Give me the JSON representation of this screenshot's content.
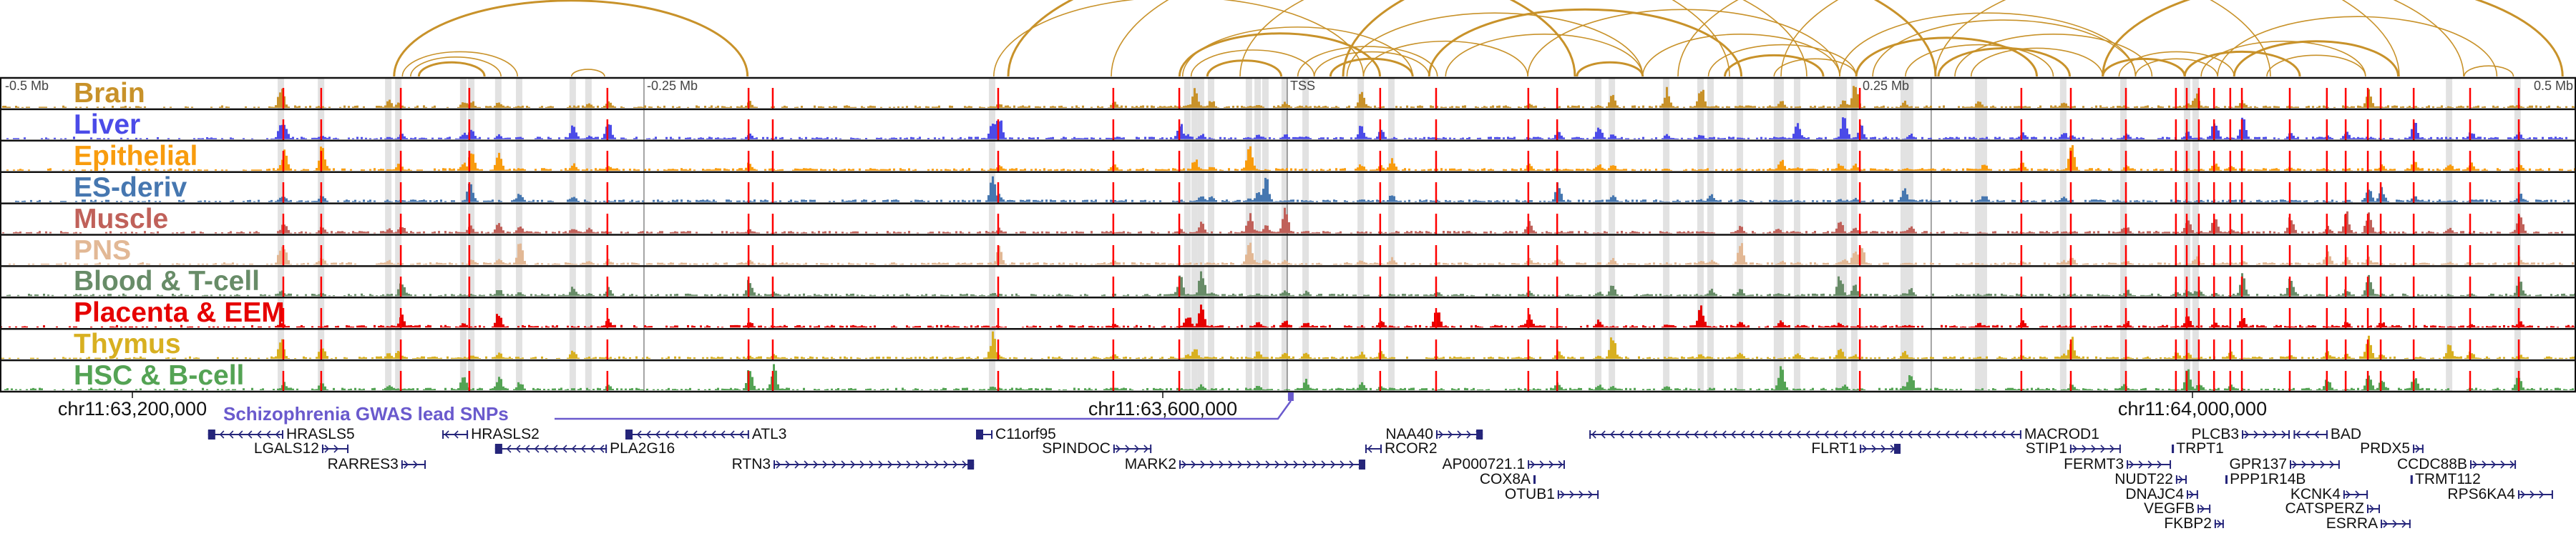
{
  "tracks": [
    {
      "label": "Brain",
      "color": "#c8922a"
    },
    {
      "label": "Liver",
      "color": "#4b4be8"
    },
    {
      "label": "Epithelial",
      "color": "#f89c0e"
    },
    {
      "label": "ES-deriv",
      "color": "#4677b0"
    },
    {
      "label": "Muscle",
      "color": "#c0615a"
    },
    {
      "label": "PNS",
      "color": "#e2b895"
    },
    {
      "label": "Blood & T-cell",
      "color": "#688c68"
    },
    {
      "label": "Placenta & EEM",
      "color": "#e60000"
    },
    {
      "label": "Thymus",
      "color": "#d8b021"
    },
    {
      "label": "HSC & B-cell",
      "color": "#54a354"
    }
  ],
  "scale_labels": {
    "minus_half": "-0.5 Mb",
    "minus_quarter": "-0.25 Mb",
    "tss": "TSS",
    "plus_quarter": "0.25 Mb",
    "plus_half": "0.5 Mb"
  },
  "coordinates": {
    "c1": "chr11:63,200,000",
    "c2": "chr11:63,600,000",
    "c3": "chr11:64,000,000"
  },
  "snp_track": {
    "label": "Schizophrenia GWAS lead SNPs",
    "color": "#6a5acd",
    "lead_snp_kb": 449.7
  },
  "colors": {
    "loop": "#c8922a",
    "snp_line": "#ff0000",
    "highlight": "#e2e2e2",
    "gene": "#25257a"
  },
  "position_units": "kb from chr11:63,200,000",
  "loops": [
    [
      101.6,
      238.8
    ],
    [
      104.8,
      149.5
    ],
    [
      108,
      143.1
    ],
    [
      111.2,
      136.7
    ],
    [
      170.5,
      183.3
    ],
    [
      334.4,
      477.9
    ],
    [
      406.5,
      484.3
    ],
    [
      407.7,
      497
    ],
    [
      411,
      458.8
    ],
    [
      417.3,
      446
    ],
    [
      452.4,
      506.6
    ],
    [
      458.8,
      503.4
    ],
    [
      465.1,
      497
    ],
    [
      471.5,
      586.3
    ],
    [
      477.9,
      541.7
    ],
    [
      503.4,
      624.6
    ],
    [
      509.8,
      586.3
    ],
    [
      541.7,
      662.8
    ],
    [
      560.8,
      586.3
    ],
    [
      586.3,
      662.8
    ],
    [
      611.8,
      669.2
    ],
    [
      618.2,
      656.4
    ],
    [
      637.3,
      669.2
    ],
    [
      662.8,
      777.6
    ],
    [
      669.2,
      739.3
    ],
    [
      675.6,
      777.6
    ],
    [
      688.3,
      745.7
    ],
    [
      701.1,
      752.1
    ],
    [
      713.8,
      764.9
    ],
    [
      707.5,
      784
    ],
    [
      764.9,
      796.7
    ],
    [
      771.2,
      815.9
    ],
    [
      777.6,
      809.5
    ],
    [
      796.7,
      841.4
    ],
    [
      803.1,
      866.9
    ],
    [
      809.5,
      917.9
    ],
    [
      815.9,
      879.6
    ],
    [
      828.6,
      866.9
    ],
    [
      905.2,
      924.3
    ],
    [
      764.9,
      943.4
    ],
    [
      380,
      620
    ],
    [
      430,
      650
    ],
    [
      470,
      700
    ],
    [
      600,
      830
    ],
    [
      640,
      880
    ],
    [
      340,
      560
    ],
    [
      700,
      905
    ]
  ],
  "snps_kb": [
    58.6,
    73.3,
    104.2,
    130.8,
    184.4,
    239.2,
    248.6,
    336.1,
    380.8,
    406.4,
    484.4,
    506.1,
    541.9,
    553.1,
    670.6,
    733.3,
    752.5,
    773.9,
    793.3,
    797.5,
    802.2,
    808.1,
    814.4,
    818.9,
    837.5,
    851.9,
    859.2,
    867.8,
    872.8,
    885.6,
    907.5,
    926.4
  ],
  "scale_lines_kb": [
    198.6,
    448.3,
    698.3
  ],
  "highlights_kb": [
    57.5,
    73.1,
    99.2,
    103.1,
    128.3,
    131.4,
    141.9,
    150,
    170.8,
    176.9,
    333.6,
    409.4,
    412.2,
    414.7,
    418.6,
    433.3,
    436.7,
    439.7,
    447.2,
    455.3,
    476.7,
    488.6,
    568.9,
    574.2,
    595.3,
    608.6,
    612.5,
    623.9,
    638.3,
    639.7,
    646.1,
    662.5,
    664.2,
    668.3,
    687.5,
    690,
    716.4,
    718.6,
    749.4,
    772.8,
    797.5,
    800.8,
    899.2,
    925.8
  ],
  "genes": [
    {
      "name": "HRASLS5",
      "start": 29.4,
      "end": 58.6,
      "strand": "-",
      "row": 0,
      "label_side": "right",
      "block": "start"
    },
    {
      "name": "HRASLS2",
      "start": 120.3,
      "end": 130.3,
      "strand": "-",
      "row": 0,
      "label_side": "right"
    },
    {
      "name": "ATL3",
      "start": 191.4,
      "end": 239.4,
      "strand": "-",
      "row": 0,
      "label_side": "right",
      "block": "start"
    },
    {
      "name": "LGALS12",
      "start": 73.6,
      "end": 83.9,
      "strand": "+",
      "row": 1,
      "label_side": "left"
    },
    {
      "name": "PLA2G16",
      "start": 140.8,
      "end": 184.2,
      "strand": "-",
      "row": 1,
      "label_side": "right",
      "block": "start"
    },
    {
      "name": "RARRES3",
      "start": 104.4,
      "end": 113.9,
      "strand": "+",
      "row": 2,
      "label_side": "left"
    },
    {
      "name": "RTN3",
      "start": 248.9,
      "end": 326.7,
      "strand": "+",
      "row": 2,
      "label_side": "left",
      "block": "end"
    },
    {
      "name": "C11orf95",
      "start": 327.5,
      "end": 333.9,
      "strand": "-",
      "row": 0,
      "label_side": "right",
      "block": "start"
    },
    {
      "name": "NAA40",
      "start": 506.1,
      "end": 524.2,
      "strand": "+",
      "row": 0,
      "label_side": "left",
      "block": "end"
    },
    {
      "name": "MACROD1",
      "start": 565.6,
      "end": 733.3,
      "strand": "-",
      "row": 0,
      "label_side": "right"
    },
    {
      "name": "SPINDOC",
      "start": 380.8,
      "end": 395.6,
      "strand": "+",
      "row": 1,
      "label_side": "left"
    },
    {
      "name": "RCOR2",
      "start": 478.6,
      "end": 485.0,
      "strand": "-",
      "row": 1,
      "label_side": "right"
    },
    {
      "name": "MARK2",
      "start": 406.4,
      "end": 478.6,
      "strand": "+",
      "row": 2,
      "label_side": "left",
      "block": "end"
    },
    {
      "name": "AP000721.1",
      "start": 541.7,
      "end": 556.1,
      "strand": "+",
      "row": 2,
      "label_side": "left"
    },
    {
      "name": "COX8A",
      "start": 543.9,
      "end": 544.5,
      "strand": "+",
      "row": 3,
      "label_side": "left"
    },
    {
      "name": "OTUB1",
      "start": 553.3,
      "end": 569.2,
      "strand": "+",
      "row": 4,
      "label_side": "left"
    },
    {
      "name": "PLCB3",
      "start": 818.9,
      "end": 837.5,
      "strand": "+",
      "row": 0,
      "label_side": "left"
    },
    {
      "name": "BAD",
      "start": 839.0,
      "end": 852.2,
      "strand": "-",
      "row": 0,
      "label_side": "right"
    },
    {
      "name": "FLRT1",
      "start": 670.6,
      "end": 686.4,
      "strand": "+",
      "row": 1,
      "label_side": "left",
      "block": "end"
    },
    {
      "name": "STIP1",
      "start": 752.2,
      "end": 771.9,
      "strand": "+",
      "row": 1,
      "label_side": "left"
    },
    {
      "name": "TRPT1",
      "start": 791.7,
      "end": 792.3,
      "strand": "+",
      "row": 1,
      "label_side": "right"
    },
    {
      "name": "PRDX5",
      "start": 885.3,
      "end": 889.4,
      "strand": "+",
      "row": 1,
      "label_side": "left"
    },
    {
      "name": "FERMT3",
      "start": 774.2,
      "end": 791.4,
      "strand": "+",
      "row": 2,
      "label_side": "left"
    },
    {
      "name": "GPR137",
      "start": 837.5,
      "end": 856.9,
      "strand": "+",
      "row": 2,
      "label_side": "left"
    },
    {
      "name": "CCDC88B",
      "start": 907.5,
      "end": 925.3,
      "strand": "+",
      "row": 2,
      "label_side": "left"
    },
    {
      "name": "NUDT22",
      "start": 793.3,
      "end": 797.5,
      "strand": "+",
      "row": 3,
      "label_side": "left"
    },
    {
      "name": "PPP1R14B",
      "start": 812.5,
      "end": 813.1,
      "strand": "+",
      "row": 3,
      "label_side": "right"
    },
    {
      "name": "TRMT112",
      "start": 884.4,
      "end": 885.0,
      "strand": "+",
      "row": 3,
      "label_side": "right"
    },
    {
      "name": "DNAJC4",
      "start": 797.5,
      "end": 801.9,
      "strand": "+",
      "row": 4,
      "label_side": "left"
    },
    {
      "name": "KCNK4",
      "start": 858.3,
      "end": 867.8,
      "strand": "+",
      "row": 4,
      "label_side": "left"
    },
    {
      "name": "RPS6KA4",
      "start": 926.1,
      "end": 939.7,
      "strand": "+",
      "row": 4,
      "label_side": "left"
    },
    {
      "name": "VEGFB",
      "start": 801.7,
      "end": 806.7,
      "strand": "+",
      "row": 5,
      "label_side": "left"
    },
    {
      "name": "CATSPERZ",
      "start": 867.5,
      "end": 872.5,
      "strand": "+",
      "row": 5,
      "label_side": "left"
    },
    {
      "name": "FKBP2",
      "start": 808.3,
      "end": 811.9,
      "strand": "+",
      "row": 6,
      "label_side": "left"
    },
    {
      "name": "ESRRA",
      "start": 872.8,
      "end": 884.4,
      "strand": "+",
      "row": 6,
      "label_side": "left"
    }
  ]
}
